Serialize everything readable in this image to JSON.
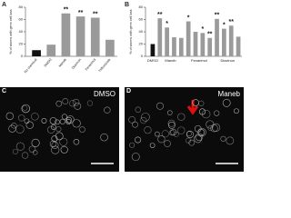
{
  "chart_data": [
    {
      "type": "bar",
      "panel_label": "A",
      "y_label": "% of worms with germ cell loss",
      "categories": [
        "No chemical",
        "DMSO",
        "Maneb",
        "Diazinon",
        "Fenarimol",
        "Triflumizole"
      ],
      "values": [
        10,
        19,
        70,
        65,
        63,
        27
      ],
      "colors": [
        "#111111",
        "#9a9a9a",
        "#9a9a9a",
        "#9a9a9a",
        "#9a9a9a",
        "#9a9a9a"
      ],
      "significance": [
        null,
        null,
        "**",
        "**",
        "**",
        null
      ],
      "ylim": [
        0,
        80
      ],
      "yticks": [
        0,
        20,
        40,
        60,
        80
      ]
    },
    {
      "type": "bar",
      "panel_label": "B",
      "y_label": "% of worms with germ cell loss",
      "categories": [
        "DMSO",
        null,
        null,
        null,
        null,
        null,
        null,
        null,
        null,
        null,
        null,
        null,
        null
      ],
      "groups": [
        "Maneb",
        "Fenarimol",
        "Diazinon"
      ],
      "values": [
        20,
        62,
        47,
        31,
        30,
        57,
        40,
        38,
        30,
        61,
        45,
        50,
        32
      ],
      "colors": [
        "#111111",
        "#9a9a9a",
        "#9a9a9a",
        "#9a9a9a",
        "#9a9a9a",
        "#9a9a9a",
        "#9a9a9a",
        "#9a9a9a",
        "#9a9a9a",
        "#9a9a9a",
        "#9a9a9a",
        "#9a9a9a",
        "#9a9a9a"
      ],
      "significance": [
        null,
        "**",
        "*",
        null,
        null,
        "*",
        null,
        "*",
        "**",
        "**",
        "*",
        "**",
        null
      ],
      "ylim": [
        0,
        80
      ],
      "yticks": [
        0,
        20,
        40,
        60,
        80
      ]
    }
  ],
  "images": [
    {
      "panel_label": "C",
      "label": "DMSO"
    },
    {
      "panel_label": "D",
      "label": "Maneb"
    }
  ]
}
